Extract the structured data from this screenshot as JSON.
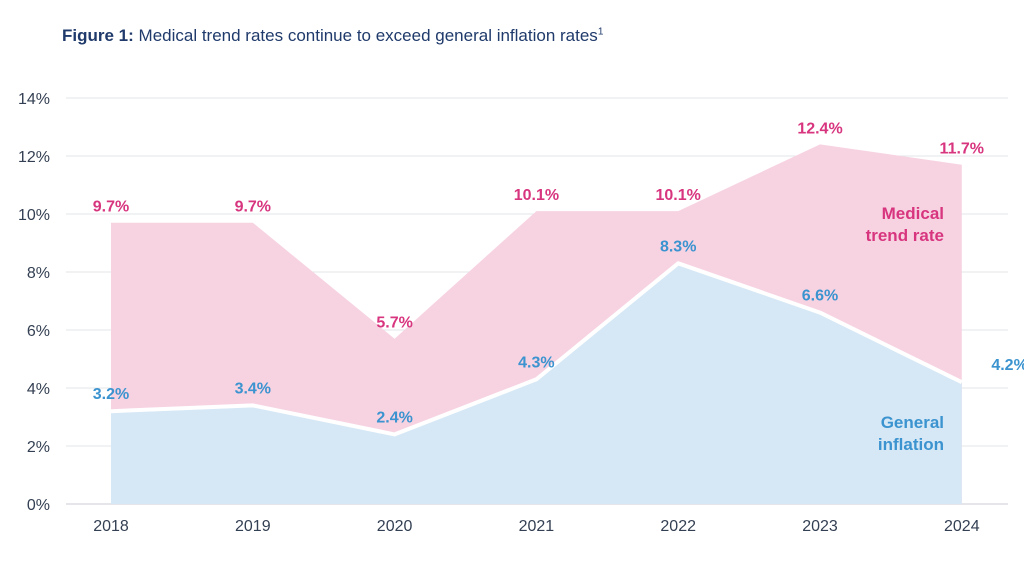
{
  "title_prefix": "Figure 1:",
  "title_text": "Medical trend rates continue to exceed general inflation rates",
  "title_footnote": "1",
  "chart_data": {
    "type": "area",
    "title": "Medical trend rates continue to exceed general inflation rates",
    "categories": [
      "2018",
      "2019",
      "2020",
      "2021",
      "2022",
      "2023",
      "2024"
    ],
    "series": [
      {
        "name": "Medical trend rate",
        "values": [
          9.7,
          9.7,
          5.7,
          10.1,
          10.1,
          12.4,
          11.7
        ],
        "labels": [
          "9.7%",
          "9.7%",
          "5.7%",
          "10.1%",
          "10.1%",
          "12.4%",
          "11.7%"
        ],
        "color": "#f7d3e2",
        "label_color": "#d8357f"
      },
      {
        "name": "General inflation",
        "values": [
          3.2,
          3.4,
          2.4,
          4.3,
          8.3,
          6.6,
          4.2
        ],
        "labels": [
          "3.2%",
          "3.4%",
          "2.4%",
          "4.3%",
          "8.3%",
          "6.6%",
          "4.2%"
        ],
        "color": "#d6e8f6",
        "label_color": "#3b93cf"
      }
    ],
    "legend": {
      "medical_line1": "Medical",
      "medical_line2": "trend rate",
      "inflation_line1": "General",
      "inflation_line2": "inflation"
    },
    "yticks": [
      "0%",
      "2%",
      "4%",
      "6%",
      "8%",
      "10%",
      "12%",
      "14%"
    ],
    "ylim": [
      0,
      14
    ],
    "grid": true
  }
}
